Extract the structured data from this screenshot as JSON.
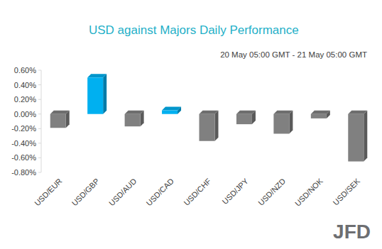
{
  "chart_data": {
    "type": "bar",
    "title": "USD against Majors Daily Performance",
    "subtitle": "20 May 05:00 GMT - 21 May 05:00 GMT",
    "categories": [
      "USD/EUR",
      "USD/GBP",
      "USD/AUD",
      "USD/CAD",
      "USD/CHF",
      "USD/JPY",
      "USD/NZD",
      "USD/NOK",
      "USD/SEK"
    ],
    "values": [
      -0.19,
      0.5,
      -0.17,
      0.05,
      -0.37,
      -0.14,
      -0.27,
      -0.06,
      -0.65
    ],
    "colors": [
      "#808080",
      "#00b0f0",
      "#808080",
      "#00b0f0",
      "#808080",
      "#808080",
      "#808080",
      "#808080",
      "#808080"
    ],
    "ylim": [
      -0.8,
      0.6
    ],
    "yticks": [
      {
        "value": 0.6,
        "label": "0.60%"
      },
      {
        "value": 0.4,
        "label": "0.40%"
      },
      {
        "value": 0.2,
        "label": "0.20%"
      },
      {
        "value": 0,
        "label": "0.00%"
      },
      {
        "value": -0.2,
        "label": "-0.20%"
      },
      {
        "value": -0.4,
        "label": "-0.40%"
      },
      {
        "value": -0.6,
        "label": "-0.60%"
      },
      {
        "value": -0.8,
        "label": "-0.80%"
      }
    ],
    "grid": false,
    "annotations": [
      "JFD"
    ]
  }
}
